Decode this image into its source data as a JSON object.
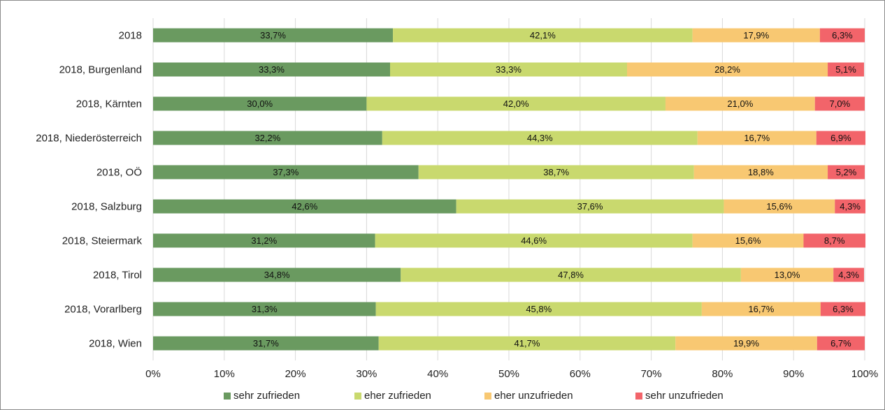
{
  "chart_data": {
    "type": "bar",
    "orientation": "horizontal",
    "stacked": true,
    "title": "",
    "xlabel": "",
    "ylabel": "",
    "xlim": [
      0,
      100
    ],
    "grid": true,
    "legend_position": "bottom",
    "x_ticks": [
      "0%",
      "10%",
      "20%",
      "30%",
      "40%",
      "50%",
      "60%",
      "70%",
      "80%",
      "90%",
      "100%"
    ],
    "categories": [
      "2018",
      "2018, Burgenland",
      "2018, Kärnten",
      "2018, Niederösterreich",
      "2018, OÖ",
      "2018, Salzburg",
      "2018, Steiermark",
      "2018, Tirol",
      "2018, Vorarlberg",
      "2018, Wien"
    ],
    "series": [
      {
        "name": "sehr zufrieden",
        "color": "#6a9a60",
        "values": [
          33.7,
          33.3,
          30.0,
          32.2,
          37.3,
          42.6,
          31.2,
          34.8,
          31.3,
          31.7
        ],
        "labels": [
          "33,7%",
          "33,3%",
          "30,0%",
          "32,2%",
          "37,3%",
          "42,6%",
          "31,2%",
          "34,8%",
          "31,3%",
          "31,7%"
        ]
      },
      {
        "name": "eher zufrieden",
        "color": "#c9d96e",
        "values": [
          42.1,
          33.3,
          42.0,
          44.3,
          38.7,
          37.6,
          44.6,
          47.8,
          45.8,
          41.7
        ],
        "labels": [
          "42,1%",
          "33,3%",
          "42,0%",
          "44,3%",
          "38,7%",
          "37,6%",
          "44,6%",
          "47,8%",
          "45,8%",
          "41,7%"
        ]
      },
      {
        "name": "eher unzufrieden",
        "color": "#f8c872",
        "values": [
          17.9,
          28.2,
          21.0,
          16.7,
          18.8,
          15.6,
          15.6,
          13.0,
          16.7,
          19.9
        ],
        "labels": [
          "17,9%",
          "28,2%",
          "21,0%",
          "16,7%",
          "18,8%",
          "15,6%",
          "15,6%",
          "13,0%",
          "16,7%",
          "19,9%"
        ]
      },
      {
        "name": "sehr unzufrieden",
        "color": "#f2646a",
        "values": [
          6.3,
          5.1,
          7.0,
          6.9,
          5.2,
          4.3,
          8.7,
          4.3,
          6.3,
          6.7
        ],
        "labels": [
          "6,3%",
          "5,1%",
          "7,0%",
          "6,9%",
          "5,2%",
          "4,3%",
          "8,7%",
          "4,3%",
          "6,3%",
          "6,7%"
        ]
      }
    ]
  }
}
